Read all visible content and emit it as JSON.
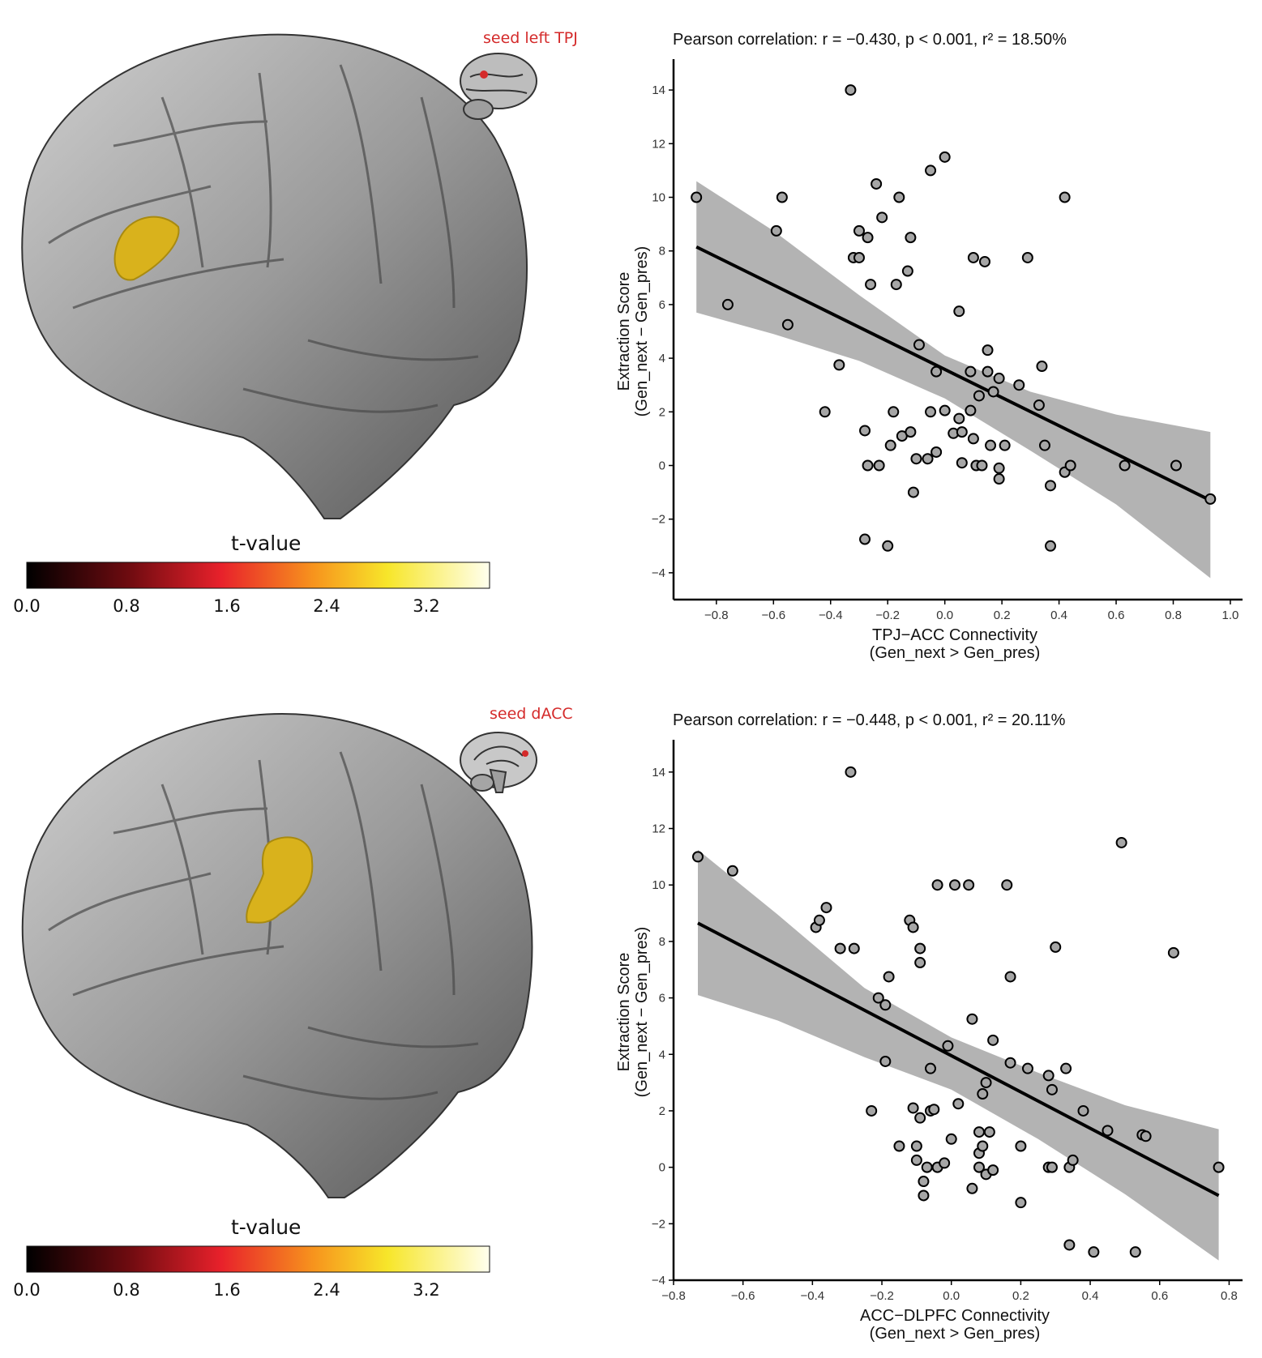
{
  "colors": {
    "brain": "#8c8c8c",
    "cluster": "#d9b21c",
    "seed": "#d42a2a",
    "ci_band": "#b3b3b3",
    "point_fill": "#a6a6a6",
    "line": "#000000"
  },
  "colorbar": {
    "title": "t-value",
    "ticks": [
      "0.0",
      "0.8",
      "1.6",
      "2.4",
      "3.2"
    ],
    "stops": [
      "#000000",
      "#6e0b10",
      "#e8212b",
      "#f7941d",
      "#f7e62a",
      "#ffffee"
    ]
  },
  "panels": [
    {
      "seed_label": "seed left TPJ",
      "brain_icon": "lateral-brain-icon",
      "stat": {
        "r": "−0.430",
        "p": "< 0.001",
        "r2": "18.50%"
      }
    },
    {
      "seed_label": "seed dACC",
      "brain_icon": "sagittal-brain-icon",
      "stat": {
        "r": "−0.448",
        "p": "< 0.001",
        "r2": "20.11%"
      }
    }
  ],
  "chart_data": [
    {
      "type": "scatter",
      "title": "Pearson correlation: r = −0.430, p < 0.001, r² = 18.50%",
      "xlabel_main": "TPJ−ACC Connectivity",
      "xlabel_sub": "(Gen_next > Gen_pres)",
      "ylabel_main": "Extraction Score",
      "ylabel_sub": "(Gen_next − Gen_pres)",
      "xlim": [
        -0.95,
        1.02
      ],
      "ylim": [
        -5.0,
        15.0
      ],
      "xticks": [
        -0.8,
        -0.6,
        -0.4,
        -0.2,
        0.0,
        0.2,
        0.4,
        0.6,
        0.8,
        1.0
      ],
      "xtick_labels": [
        "−0.8",
        "−0.6",
        "−0.4",
        "−0.2",
        "0.0",
        "0.2",
        "0.4",
        "0.6",
        "0.8",
        "1.0"
      ],
      "yticks": [
        -4,
        -2,
        0,
        2,
        4,
        6,
        8,
        10,
        12,
        14
      ],
      "ytick_labels": [
        "−4",
        "−2",
        "0",
        "2",
        "4",
        "6",
        "8",
        "10",
        "12",
        "14"
      ],
      "fit": {
        "x": [
          -0.87,
          0.93
        ],
        "y": [
          8.15,
          -1.3
        ]
      },
      "ci": {
        "x": [
          -0.87,
          -0.6,
          -0.3,
          0.0,
          0.3,
          0.6,
          0.93
        ],
        "lower": [
          5.7,
          4.9,
          3.9,
          2.5,
          0.55,
          -1.45,
          -4.2
        ],
        "upper": [
          10.6,
          8.75,
          6.35,
          4.1,
          2.75,
          1.9,
          1.25
        ]
      },
      "points": [
        {
          "x": -0.87,
          "y": 10.0
        },
        {
          "x": -0.76,
          "y": 6.0
        },
        {
          "x": -0.57,
          "y": 10.0
        },
        {
          "x": -0.59,
          "y": 8.75
        },
        {
          "x": -0.55,
          "y": 5.25
        },
        {
          "x": -0.42,
          "y": 2.0
        },
        {
          "x": -0.37,
          "y": 3.75
        },
        {
          "x": -0.33,
          "y": 14.0
        },
        {
          "x": -0.32,
          "y": 7.75
        },
        {
          "x": -0.3,
          "y": 7.75
        },
        {
          "x": -0.3,
          "y": 8.75
        },
        {
          "x": -0.28,
          "y": 1.3
        },
        {
          "x": -0.27,
          "y": 8.5
        },
        {
          "x": -0.27,
          "y": 0.0
        },
        {
          "x": -0.26,
          "y": 6.75
        },
        {
          "x": -0.24,
          "y": 10.5
        },
        {
          "x": -0.23,
          "y": 0.0
        },
        {
          "x": -0.28,
          "y": -2.75
        },
        {
          "x": -0.22,
          "y": 9.25
        },
        {
          "x": -0.2,
          "y": -3.0
        },
        {
          "x": -0.19,
          "y": 0.75
        },
        {
          "x": -0.18,
          "y": 2.0
        },
        {
          "x": -0.17,
          "y": 6.75
        },
        {
          "x": -0.16,
          "y": 10.0
        },
        {
          "x": -0.15,
          "y": 1.1
        },
        {
          "x": -0.13,
          "y": 7.25
        },
        {
          "x": -0.12,
          "y": 8.5
        },
        {
          "x": -0.12,
          "y": 1.25
        },
        {
          "x": -0.11,
          "y": -1.0
        },
        {
          "x": -0.1,
          "y": 0.25
        },
        {
          "x": -0.09,
          "y": 4.5
        },
        {
          "x": -0.06,
          "y": 0.25
        },
        {
          "x": -0.05,
          "y": 11.0
        },
        {
          "x": -0.05,
          "y": 2.0
        },
        {
          "x": -0.03,
          "y": 3.5
        },
        {
          "x": -0.03,
          "y": 0.5
        },
        {
          "x": 0.0,
          "y": 11.5
        },
        {
          "x": 0.0,
          "y": 2.05
        },
        {
          "x": 0.03,
          "y": 1.2
        },
        {
          "x": 0.05,
          "y": 5.75
        },
        {
          "x": 0.05,
          "y": 1.75
        },
        {
          "x": 0.06,
          "y": 1.25
        },
        {
          "x": 0.06,
          "y": 0.1
        },
        {
          "x": 0.09,
          "y": 3.5
        },
        {
          "x": 0.09,
          "y": 2.05
        },
        {
          "x": 0.1,
          "y": 1.0
        },
        {
          "x": 0.1,
          "y": 7.75
        },
        {
          "x": 0.11,
          "y": 0.0
        },
        {
          "x": 0.12,
          "y": 2.6
        },
        {
          "x": 0.13,
          "y": 0.0
        },
        {
          "x": 0.14,
          "y": 7.6
        },
        {
          "x": 0.15,
          "y": 3.5
        },
        {
          "x": 0.15,
          "y": 4.3
        },
        {
          "x": 0.16,
          "y": 0.75
        },
        {
          "x": 0.17,
          "y": 2.75
        },
        {
          "x": 0.19,
          "y": 3.25
        },
        {
          "x": 0.19,
          "y": -0.1
        },
        {
          "x": 0.19,
          "y": -0.5
        },
        {
          "x": 0.21,
          "y": 0.75
        },
        {
          "x": 0.26,
          "y": 3.0
        },
        {
          "x": 0.29,
          "y": 7.75
        },
        {
          "x": 0.33,
          "y": 2.25
        },
        {
          "x": 0.34,
          "y": 3.7
        },
        {
          "x": 0.35,
          "y": 0.75
        },
        {
          "x": 0.37,
          "y": -0.75
        },
        {
          "x": 0.37,
          "y": -3.0
        },
        {
          "x": 0.42,
          "y": 10.0
        },
        {
          "x": 0.42,
          "y": -0.25
        },
        {
          "x": 0.44,
          "y": 0.0
        },
        {
          "x": 0.63,
          "y": 0.0
        },
        {
          "x": 0.81,
          "y": 0.0
        },
        {
          "x": 0.93,
          "y": -1.25
        }
      ]
    },
    {
      "type": "scatter",
      "title": "Pearson correlation: r = −0.448, p < 0.001, r² = 20.11%",
      "xlabel_main": "ACC−DLPFC Connectivity",
      "xlabel_sub": "(Gen_next > Gen_pres)",
      "ylabel_main": "Extraction Score",
      "ylabel_sub": "(Gen_next − Gen_pres)",
      "xlim": [
        -0.8,
        0.82
      ],
      "ylim": [
        -4.0,
        15.0
      ],
      "xticks": [
        -0.8,
        -0.6,
        -0.4,
        -0.2,
        0.0,
        0.2,
        0.4,
        0.6,
        0.8
      ],
      "xtick_labels": [
        "−0.8",
        "−0.6",
        "−0.4",
        "−0.2",
        "0.0",
        "0.2",
        "0.4",
        "0.6",
        "0.8"
      ],
      "yticks": [
        -4,
        -2,
        0,
        2,
        4,
        6,
        8,
        10,
        12,
        14
      ],
      "ytick_labels": [
        "−4",
        "−2",
        "0",
        "2",
        "4",
        "6",
        "8",
        "10",
        "12",
        "14"
      ],
      "fit": {
        "x": [
          -0.73,
          0.77
        ],
        "y": [
          8.65,
          -1.0
        ]
      },
      "ci": {
        "x": [
          -0.73,
          -0.5,
          -0.25,
          0.0,
          0.25,
          0.5,
          0.77
        ],
        "lower": [
          6.1,
          5.2,
          3.9,
          2.75,
          1.0,
          -0.95,
          -3.3
        ],
        "upper": [
          11.25,
          8.95,
          6.35,
          4.6,
          3.35,
          2.2,
          1.35
        ]
      },
      "points": [
        {
          "x": -0.73,
          "y": 11.0
        },
        {
          "x": -0.63,
          "y": 10.5
        },
        {
          "x": -0.39,
          "y": 8.5
        },
        {
          "x": -0.38,
          "y": 8.75
        },
        {
          "x": -0.36,
          "y": 9.2
        },
        {
          "x": -0.32,
          "y": 7.75
        },
        {
          "x": -0.29,
          "y": 14.0
        },
        {
          "x": -0.28,
          "y": 7.75
        },
        {
          "x": -0.23,
          "y": 2.0
        },
        {
          "x": -0.21,
          "y": 6.0
        },
        {
          "x": -0.19,
          "y": 5.75
        },
        {
          "x": -0.19,
          "y": 3.75
        },
        {
          "x": -0.18,
          "y": 6.75
        },
        {
          "x": -0.15,
          "y": 0.75
        },
        {
          "x": -0.12,
          "y": 8.75
        },
        {
          "x": -0.11,
          "y": 8.5
        },
        {
          "x": -0.11,
          "y": 2.1
        },
        {
          "x": -0.1,
          "y": 0.75
        },
        {
          "x": -0.1,
          "y": 0.25
        },
        {
          "x": -0.09,
          "y": 7.75
        },
        {
          "x": -0.09,
          "y": 7.25
        },
        {
          "x": -0.09,
          "y": 1.75
        },
        {
          "x": -0.08,
          "y": -0.5
        },
        {
          "x": -0.08,
          "y": -1.0
        },
        {
          "x": -0.07,
          "y": 0.0
        },
        {
          "x": -0.06,
          "y": 2.0
        },
        {
          "x": -0.06,
          "y": 3.5
        },
        {
          "x": -0.05,
          "y": 2.05
        },
        {
          "x": -0.04,
          "y": 10.0
        },
        {
          "x": -0.04,
          "y": 0.0
        },
        {
          "x": -0.02,
          "y": 0.15
        },
        {
          "x": -0.01,
          "y": 4.3
        },
        {
          "x": 0.0,
          "y": 1.0
        },
        {
          "x": 0.01,
          "y": 10.0
        },
        {
          "x": 0.02,
          "y": 2.25
        },
        {
          "x": 0.05,
          "y": 10.0
        },
        {
          "x": 0.06,
          "y": 5.25
        },
        {
          "x": 0.06,
          "y": -0.75
        },
        {
          "x": 0.08,
          "y": 1.25
        },
        {
          "x": 0.08,
          "y": 0.5
        },
        {
          "x": 0.08,
          "y": 0.0
        },
        {
          "x": 0.09,
          "y": 2.6
        },
        {
          "x": 0.09,
          "y": 0.75
        },
        {
          "x": 0.1,
          "y": 3.0
        },
        {
          "x": 0.1,
          "y": -0.25
        },
        {
          "x": 0.11,
          "y": 1.25
        },
        {
          "x": 0.12,
          "y": 4.5
        },
        {
          "x": 0.12,
          "y": -0.1
        },
        {
          "x": 0.16,
          "y": 10.0
        },
        {
          "x": 0.17,
          "y": 3.7
        },
        {
          "x": 0.17,
          "y": 6.75
        },
        {
          "x": 0.2,
          "y": -1.25
        },
        {
          "x": 0.2,
          "y": 0.75
        },
        {
          "x": 0.22,
          "y": 3.5
        },
        {
          "x": 0.28,
          "y": 3.25
        },
        {
          "x": 0.28,
          "y": 0.0
        },
        {
          "x": 0.29,
          "y": 2.75
        },
        {
          "x": 0.29,
          "y": 0.0
        },
        {
          "x": 0.3,
          "y": 7.8
        },
        {
          "x": 0.33,
          "y": 3.5
        },
        {
          "x": 0.34,
          "y": -2.75
        },
        {
          "x": 0.34,
          "y": 0.0
        },
        {
          "x": 0.35,
          "y": 0.25
        },
        {
          "x": 0.38,
          "y": 2.0
        },
        {
          "x": 0.41,
          "y": -3.0
        },
        {
          "x": 0.45,
          "y": 1.3
        },
        {
          "x": 0.49,
          "y": 11.5
        },
        {
          "x": 0.53,
          "y": -3.0
        },
        {
          "x": 0.55,
          "y": 1.15
        },
        {
          "x": 0.56,
          "y": 1.1
        },
        {
          "x": 0.64,
          "y": 7.6
        },
        {
          "x": 0.77,
          "y": 0.0
        }
      ]
    }
  ]
}
